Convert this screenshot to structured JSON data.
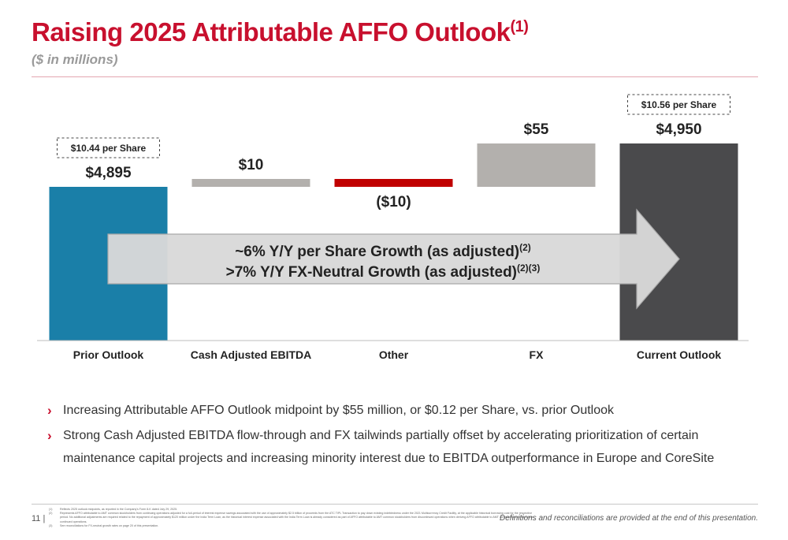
{
  "header": {
    "title": "Raising 2025 Attributable AFFO Outlook",
    "title_sup": "(1)",
    "subtitle": "($ in millions)"
  },
  "chart_data": {
    "type": "bar",
    "subtype": "waterfall",
    "categories": [
      "Prior Outlook",
      "Cash Adjusted EBITDA",
      "Other",
      "FX",
      "Current Outlook"
    ],
    "values": [
      4895,
      10,
      -10,
      55,
      4950
    ],
    "data_labels": [
      "$4,895",
      "$10",
      "($10)",
      "$55",
      "$4,950"
    ],
    "colors": [
      "#1a7fa8",
      "#b3b0ad",
      "#c00000",
      "#b3b0ad",
      "#4a4a4c"
    ],
    "kinds": [
      "total",
      "delta",
      "delta",
      "delta",
      "total"
    ],
    "per_share_labels": [
      {
        "category": "Prior Outlook",
        "text": "$10.44 per Share"
      },
      {
        "category": "Current Outlook",
        "text": "$10.56 per Share"
      }
    ],
    "arrow": {
      "line1": "~6% Y/Y per Share Growth (as adjusted)",
      "line1_sup": "(2)",
      "line2": ">7% Y/Y FX-Neutral Growth (as adjusted)",
      "line2_sup": "(2)(3)"
    }
  },
  "bullets": [
    "Increasing Attributable AFFO Outlook midpoint by $55 million, or $0.12 per Share, vs. prior Outlook",
    "Strong Cash Adjusted EBITDA flow-through and FX tailwinds partially offset by accelerating prioritization of certain maintenance capital projects and increasing minority interest due to EBITDA outperformance in Europe and CoreSite"
  ],
  "footer": {
    "page_number": "11",
    "definitions_note": "Definitions and reconciliations are provided at the end of this presentation.",
    "footnotes": [
      {
        "num": "(1)",
        "text": "Reflects 2025 outlook midpoints, as reported in the Company's Form 8-K dated July 29, 2025."
      },
      {
        "num": "(2)",
        "text": "Represents AFFO attributable to AMT common stockholders from continuing operations adjusted for a full-period of interest expense savings associated with the use of approximately $2.5 billion of proceeds from the ATC TIPL Transaction to pay down existing indebtedness under the 2021 Multicurrency Credit Facility, at the applicable historical borrowing cost for the respective period. No additional adjustments are required related to the repayment of approximately $120 million under the India Term Loan, as the historical interest expense associated with the India Term Loan is already considered as part of AFFO attributable to AMT common stockholders from discontinued operations when deriving AFFO attributable to AMT common stockholders from continued operations."
      },
      {
        "num": "(3)",
        "text": "See reconciliations for FX-neutral growth rates on page 20 of this presentation."
      }
    ]
  }
}
